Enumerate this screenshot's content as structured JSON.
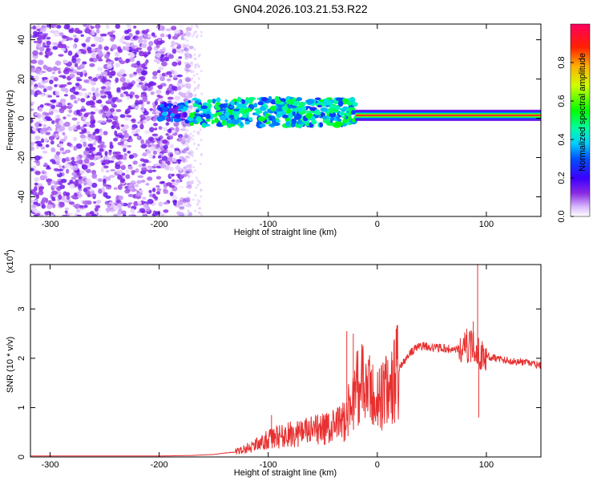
{
  "title": "GN04.2026.103.21.53.R22",
  "chart_data": [
    {
      "type": "heatmap",
      "name": "spectrogram",
      "xlabel": "Height of straight line (km)",
      "ylabel": "Frequency (Hz)",
      "xlim": [
        -318,
        150
      ],
      "ylim": [
        -50,
        48
      ],
      "x_ticks": [
        -300,
        -200,
        -100,
        0,
        100
      ],
      "x_tick_labels": [
        "-300",
        "-200",
        "-100",
        "0",
        "100"
      ],
      "y_ticks": [
        -40,
        -20,
        0,
        20,
        40
      ],
      "y_tick_labels": [
        "-40",
        "-20",
        "0",
        "20",
        "40"
      ],
      "colorbar": {
        "label": "Normalized spectral amplitude",
        "range": [
          0,
          1
        ],
        "ticks": [
          0.0,
          0.2,
          0.4,
          0.6,
          0.8
        ],
        "tick_labels": [
          "0.0",
          "0.2",
          "0.4",
          "0.6",
          "0.8"
        ]
      },
      "regions": [
        {
          "name": "noise",
          "x_range": [
            -318,
            -170
          ],
          "freq_range": [
            -50,
            48
          ],
          "amplitude": 0.1
        },
        {
          "name": "weak-band",
          "x_range": [
            -200,
            -175
          ],
          "freq_center": 3,
          "width": 8,
          "amplitude": 0.25
        },
        {
          "name": "main-band",
          "x_range": [
            -175,
            -20
          ],
          "freq_center": 3,
          "width": 14,
          "amplitude": 0.4
        },
        {
          "name": "strong-trace",
          "x_range": [
            -20,
            150
          ],
          "freq_center": 1.5,
          "width": 3,
          "amplitude": 0.95
        }
      ]
    },
    {
      "type": "line",
      "name": "snr",
      "xlabel": "Height of straight line (km)",
      "ylabel": "SNR (10 * v/v)",
      "y_multiplier_label": "(x10",
      "y_multiplier_exponent": "4",
      "y_multiplier_close": ")",
      "xlim": [
        -318,
        150
      ],
      "ylim": [
        0,
        3.9
      ],
      "x_ticks": [
        -300,
        -200,
        -100,
        0,
        100
      ],
      "x_tick_labels": [
        "-300",
        "-200",
        "-100",
        "0",
        "100"
      ],
      "y_ticks": [
        0,
        1,
        2,
        3
      ],
      "y_tick_labels": [
        "0",
        "1",
        "2",
        "3"
      ],
      "color": "#e83030",
      "series_points": [
        [
          -318,
          0.02
        ],
        [
          -250,
          0.02
        ],
        [
          -200,
          0.02
        ],
        [
          -170,
          0.03
        ],
        [
          -150,
          0.05
        ],
        [
          -140,
          0.08
        ],
        [
          -130,
          0.1
        ],
        [
          -120,
          0.18
        ],
        [
          -110,
          0.25
        ],
        [
          -100,
          0.35
        ],
        [
          -90,
          0.42
        ],
        [
          -80,
          0.45
        ],
        [
          -70,
          0.5
        ],
        [
          -60,
          0.52
        ],
        [
          -50,
          0.55
        ],
        [
          -40,
          0.6
        ],
        [
          -30,
          0.75
        ],
        [
          -25,
          1.0
        ],
        [
          -20,
          1.4
        ],
        [
          -15,
          1.5
        ],
        [
          -10,
          1.35
        ],
        [
          -5,
          1.25
        ],
        [
          0,
          1.15
        ],
        [
          5,
          1.25
        ],
        [
          10,
          1.35
        ],
        [
          15,
          1.55
        ],
        [
          20,
          1.8
        ],
        [
          25,
          1.95
        ],
        [
          30,
          2.1
        ],
        [
          35,
          2.2
        ],
        [
          40,
          2.25
        ],
        [
          50,
          2.22
        ],
        [
          60,
          2.2
        ],
        [
          70,
          2.18
        ],
        [
          80,
          2.2
        ],
        [
          85,
          2.25
        ],
        [
          90,
          2.2
        ],
        [
          95,
          2.05
        ],
        [
          100,
          2.05
        ],
        [
          110,
          2.0
        ],
        [
          120,
          1.95
        ],
        [
          130,
          1.93
        ],
        [
          140,
          1.9
        ],
        [
          150,
          1.85
        ]
      ],
      "spikes": [
        [
          -28,
          2.55
        ],
        [
          -22,
          2.5
        ],
        [
          -97,
          0.85
        ],
        [
          -50,
          0.88
        ],
        [
          -45,
          0.8
        ],
        [
          82,
          2.6
        ],
        [
          88,
          2.75
        ],
        [
          92,
          3.9
        ],
        [
          93,
          0.8
        ],
        [
          12,
          1.6
        ]
      ]
    }
  ]
}
